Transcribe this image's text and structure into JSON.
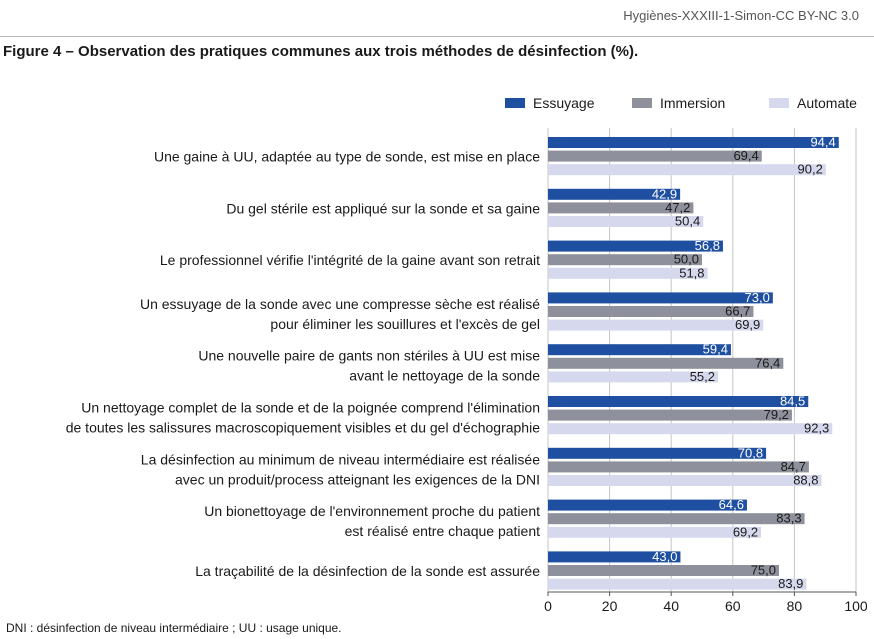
{
  "header": {
    "source": "Hygiènes-XXXIII-1-Simon-CC BY-NC 3.0"
  },
  "colors": {
    "essuyage": "#1f4fa0",
    "immersion": "#8e919b",
    "automate": "#d6d9ee"
  },
  "footnote": "DNI : désinfection de niveau intermédiaire ; UU : usage unique.",
  "chart_data": {
    "type": "bar",
    "orientation": "horizontal",
    "title": "Figure 4 – Observation des pratiques communes aux trois méthodes de désinfection (%).",
    "xlim": [
      0,
      100
    ],
    "xticks": [
      "0",
      "20",
      "40",
      "60",
      "80",
      "100"
    ],
    "legend_position": "top-right",
    "categories": [
      [
        "Une gaine à UU, adaptée au type de sonde, est mise en place"
      ],
      [
        "Du gel stérile est appliqué sur la sonde et sa gaine"
      ],
      [
        "Le professionnel vérifie l'intégrité de la gaine avant son retrait"
      ],
      [
        "Un essuyage de la sonde avec une compresse sèche est réalisé",
        "pour éliminer les souillures et l'excès de gel"
      ],
      [
        "Une nouvelle paire de gants non stériles à UU est mise",
        "avant le nettoyage de la sonde"
      ],
      [
        "Un nettoyage complet de la sonde et de la poignée comprend l'élimination",
        "de toutes les salissures macroscopiquement visibles et du gel d'échographie"
      ],
      [
        "La désinfection au minimum de niveau intermédiaire est réalisée",
        "avec un produit/process atteignant les exigences de la DNI"
      ],
      [
        "Un bionettoyage de l'environnement proche du patient",
        "est réalisé entre chaque patient"
      ],
      [
        "La traçabilité de la désinfection de la sonde est assurée"
      ]
    ],
    "series": [
      {
        "name": "Essuyage",
        "values": [
          94.4,
          42.9,
          56.8,
          73.0,
          59.4,
          84.5,
          70.8,
          64.6,
          43.0
        ],
        "labels": [
          "94,4",
          "42,9",
          "56,8",
          "73,0",
          "59,4",
          "84,5",
          "70,8",
          "64,6",
          "43,0"
        ]
      },
      {
        "name": "Immersion",
        "values": [
          69.4,
          47.2,
          50.0,
          66.7,
          76.4,
          79.2,
          84.7,
          83.3,
          75.0
        ],
        "labels": [
          "69,4",
          "47,2",
          "50,0",
          "66,7",
          "76,4",
          "79,2",
          "84,7",
          "83,3",
          "75,0"
        ]
      },
      {
        "name": "Automate",
        "values": [
          90.2,
          50.4,
          51.8,
          69.9,
          55.2,
          92.3,
          88.8,
          69.2,
          83.9
        ],
        "labels": [
          "90,2",
          "50,4",
          "51,8",
          "69,9",
          "55,2",
          "92,3",
          "88,8",
          "69,2",
          "83,9"
        ]
      }
    ]
  }
}
